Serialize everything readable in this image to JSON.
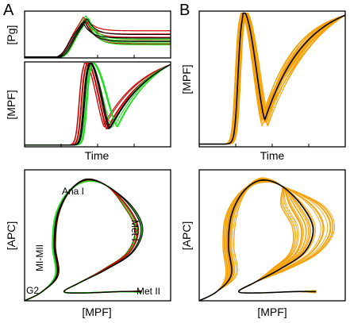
{
  "figure": {
    "panel_labels": {
      "a": "A",
      "b": "B"
    },
    "colors": {
      "red": "#cc0000",
      "green": "#22dd22",
      "black": "#000000",
      "orange": "#f5a20a"
    }
  },
  "chart_data": [
    {
      "id": "A-top-Pg",
      "type": "line",
      "xlabel": "",
      "ylabel": "[Pg]",
      "x_ticks": 3,
      "series": [
        {
          "color": "red",
          "curves": 5,
          "peak_time": 0.42,
          "peak": 0.9,
          "plateau": [
            0.3,
            0.58
          ]
        },
        {
          "color": "green",
          "curves": 4,
          "peak_time": 0.43,
          "peak": 0.95,
          "plateau": [
            0.28,
            0.4
          ]
        },
        {
          "color": "black",
          "curves": 3,
          "peak_time": 0.41,
          "peak": 0.85,
          "plateau": [
            0.35,
            0.5
          ]
        }
      ]
    },
    {
      "id": "A-mid-MPF",
      "type": "line",
      "xlabel": "Time",
      "ylabel": "[MPF]",
      "x_ticks": 3,
      "series": [
        {
          "color": "red",
          "curves": 5,
          "rise_time": 0.42,
          "trough_time": 0.56,
          "trough": 0.23
        },
        {
          "color": "green",
          "curves": 4,
          "rise_time": 0.45,
          "trough_time": 0.62,
          "trough": 0.25
        },
        {
          "color": "black",
          "curves": 2,
          "rise_time": 0.44,
          "trough_time": 0.58,
          "trough": 0.24
        }
      ]
    },
    {
      "id": "B-top-MPF",
      "type": "line",
      "xlabel": "Time",
      "ylabel": "[MPF]",
      "x_ticks": 3,
      "series": [
        {
          "color": "orange",
          "curves": 30,
          "rise_time": 0.3,
          "trough_time": 0.45,
          "trough": 0.2
        },
        {
          "color": "black",
          "curves": 1,
          "rise_time": 0.3,
          "trough_time": 0.45,
          "trough": 0.2
        }
      ]
    },
    {
      "id": "A-bottom-phase",
      "type": "line",
      "xlabel": "[MPF]",
      "ylabel": "[APC]",
      "annotations": [
        "Ana I",
        "Met I",
        "MI-MII",
        "G2",
        "Met II"
      ],
      "series": [
        {
          "color": "green",
          "curves": 5
        },
        {
          "color": "red",
          "curves": 4
        },
        {
          "color": "black",
          "curves": 2
        }
      ]
    },
    {
      "id": "B-bottom-phase",
      "type": "line",
      "xlabel": "[MPF]",
      "ylabel": "[APC]",
      "series": [
        {
          "color": "orange",
          "curves": 30
        },
        {
          "color": "black",
          "curves": 1
        }
      ]
    }
  ]
}
